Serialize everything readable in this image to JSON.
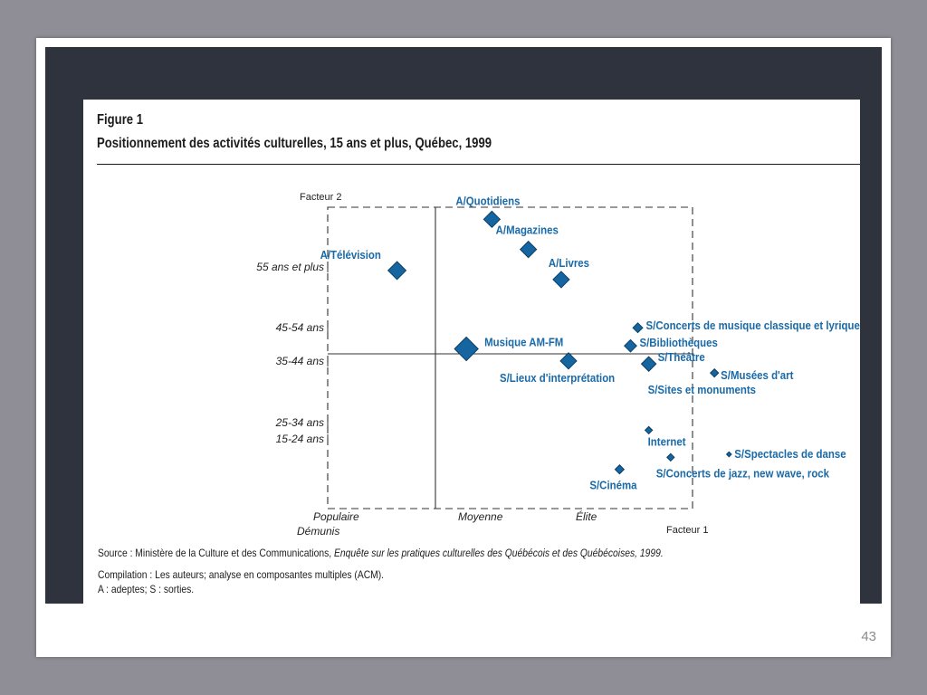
{
  "figure": {
    "number": "Figure 1",
    "title": "Positionnement des activités culturelles, 15 ans et plus, Québec, 1999"
  },
  "chart_data": {
    "type": "scatter",
    "title": "Positionnement des activités culturelles, 15 ans et plus, Québec, 1999",
    "xlabel": "Facteur 1",
    "ylabel": "Facteur 2",
    "x_categories": [
      "Populaire",
      "Démunis",
      "Moyenne",
      "Élite"
    ],
    "y_categories": [
      "55 ans et plus",
      "45-54 ans",
      "35-44 ans",
      "25-34 ans",
      "15-24 ans"
    ],
    "grid": false,
    "colors": {
      "marker": "#1565a0",
      "label": "#1a6aa8",
      "axis": "#333333"
    },
    "points": [
      {
        "label": "A/Quotidiens",
        "x": 0.45,
        "y": 0.96,
        "size": 1.0
      },
      {
        "label": "A/Magazines",
        "x": 0.55,
        "y": 0.86,
        "size": 1.0
      },
      {
        "label": "A/Livres",
        "x": 0.64,
        "y": 0.76,
        "size": 1.0
      },
      {
        "label": "A/Télévision",
        "x": 0.19,
        "y": 0.79,
        "size": 1.1
      },
      {
        "label": "Musique AM-FM",
        "x": 0.38,
        "y": 0.53,
        "size": 1.45
      },
      {
        "label": "S/Lieux d'interprétation",
        "x": 0.66,
        "y": 0.49,
        "size": 1.0
      },
      {
        "label": "S/Concerts de musique classique et lyrique",
        "x": 0.85,
        "y": 0.6,
        "size": 0.6
      },
      {
        "label": "S/Bibliothèques",
        "x": 0.83,
        "y": 0.54,
        "size": 0.75
      },
      {
        "label": "S/Théâtre",
        "x": 0.88,
        "y": 0.48,
        "size": 0.9
      },
      {
        "label": "S/Musées d'art",
        "x": 1.06,
        "y": 0.45,
        "size": 0.5
      },
      {
        "label": "S/Sites et monuments",
        "x": 0.88,
        "y": 0.48,
        "size": 0.0
      },
      {
        "label": "Internet",
        "x": 0.88,
        "y": 0.26,
        "size": 0.45
      },
      {
        "label": "S/Spectacles de danse",
        "x": 1.1,
        "y": 0.18,
        "size": 0.3
      },
      {
        "label": "S/Concerts de jazz, new wave, rock",
        "x": 0.94,
        "y": 0.17,
        "size": 0.45
      },
      {
        "label": "S/Cinéma",
        "x": 0.8,
        "y": 0.13,
        "size": 0.55
      }
    ]
  },
  "notes": {
    "source_prefix": "Source : Ministère de la Culture et des Communications, ",
    "source_title": "Enquête sur les pratiques culturelles des Québécois et des Québécoises, 1999.",
    "compilation": "Compilation : Les auteurs; analyse en composantes multiples (ACM).",
    "legend_abbrev": "A : adeptes; S : sorties."
  },
  "slide_number": "43"
}
